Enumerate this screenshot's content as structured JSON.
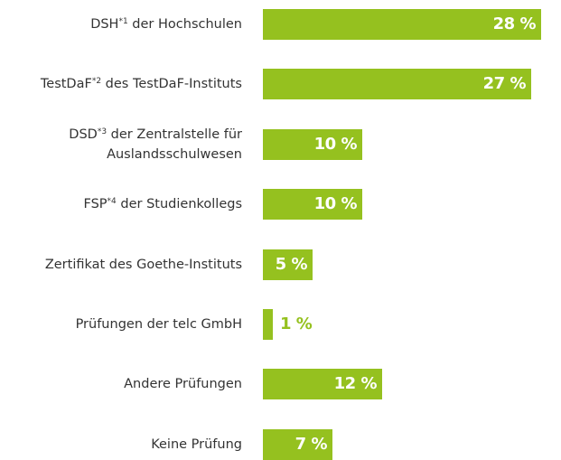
{
  "chart_data": {
    "type": "bar",
    "orientation": "horizontal",
    "color": "#95c11f",
    "categories": [
      "DSH*1 der Hochschulen",
      "TestDaF*2 des TestDaF-Instituts",
      "DSD*3 der Zentralstelle für Auslandsschulwesen",
      "FSP*4 der Studienkollegs",
      "Zertifikat des Goethe-Instituts",
      "Prüfungen der telc GmbH",
      "Andere Prüfungen",
      "Keine Prüfung"
    ],
    "values": [
      28,
      27,
      10,
      10,
      5,
      1,
      12,
      7
    ],
    "value_labels": [
      "28 %",
      "27 %",
      "10 %",
      "10 %",
      "5 %",
      "1 %",
      "12 %",
      "7 %"
    ],
    "xlim": [
      0,
      28
    ]
  }
}
